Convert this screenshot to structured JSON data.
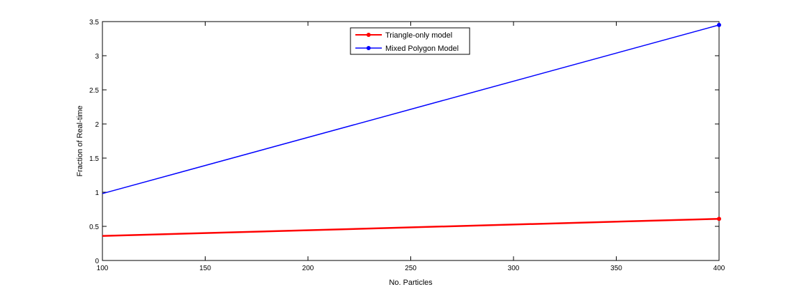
{
  "chart_data": {
    "type": "line",
    "title": "",
    "xlabel": "No. Particles",
    "ylabel": "Fraction of Real-time",
    "xlim": [
      100,
      400
    ],
    "ylim": [
      0,
      3.5
    ],
    "xticks": [
      100,
      150,
      200,
      250,
      300,
      350,
      400
    ],
    "xtick_labels": [
      "100",
      "150",
      "200",
      "250",
      "300",
      "350",
      "400"
    ],
    "yticks": [
      0,
      0.5,
      1,
      1.5,
      2,
      2.5,
      3,
      3.5
    ],
    "ytick_labels": [
      "0",
      "0.5",
      "1",
      "1.5",
      "2",
      "2.5",
      "3",
      "3.5"
    ],
    "grid": false,
    "legend_position": "top-center",
    "series": [
      {
        "name": "Triangle-only model",
        "color": "#ff0000",
        "marker": "circle",
        "x": [
          100,
          400
        ],
        "y": [
          0.36,
          0.61
        ]
      },
      {
        "name": "Mixed Polygon Model",
        "color": "#0000ff",
        "marker": "circle",
        "x": [
          100,
          400
        ],
        "y": [
          0.98,
          3.45
        ]
      }
    ]
  }
}
